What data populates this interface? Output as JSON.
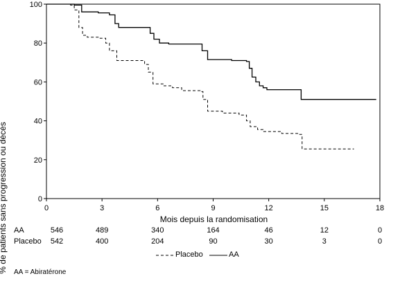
{
  "chart_data": {
    "type": "line",
    "title": "",
    "xlabel": "Mois depuis la randomisation",
    "ylabel": "% de patients sans progression ou décès",
    "xlim": [
      0,
      18
    ],
    "ylim": [
      0,
      100
    ],
    "xticks": [
      0,
      3,
      6,
      9,
      12,
      15,
      18
    ],
    "yticks": [
      0,
      20,
      40,
      60,
      80,
      100
    ],
    "grid": false,
    "series": [
      {
        "name": "AA",
        "style": "solid",
        "color": "#000000",
        "points": [
          [
            0,
            100
          ],
          [
            1.5,
            99.5
          ],
          [
            1.9,
            96
          ],
          [
            2.8,
            95.5
          ],
          [
            3.4,
            94.5
          ],
          [
            3.7,
            90
          ],
          [
            3.9,
            88
          ],
          [
            5.4,
            88
          ],
          [
            5.6,
            85
          ],
          [
            5.8,
            82
          ],
          [
            6.1,
            80
          ],
          [
            6.6,
            79.5
          ],
          [
            8.1,
            79.5
          ],
          [
            8.4,
            76
          ],
          [
            8.7,
            71.5
          ],
          [
            10,
            71
          ],
          [
            10.8,
            70.5
          ],
          [
            10.95,
            67
          ],
          [
            11.1,
            62.5
          ],
          [
            11.3,
            60
          ],
          [
            11.5,
            58
          ],
          [
            11.7,
            57
          ],
          [
            11.9,
            56
          ],
          [
            13.7,
            56
          ],
          [
            13.75,
            51
          ],
          [
            17.8,
            51
          ]
        ]
      },
      {
        "name": "Placebo",
        "style": "dashed",
        "color": "#000000",
        "points": [
          [
            0,
            100
          ],
          [
            1.3,
            99.5
          ],
          [
            1.5,
            97
          ],
          [
            1.75,
            88
          ],
          [
            1.95,
            84
          ],
          [
            2.2,
            83
          ],
          [
            2.8,
            82.5
          ],
          [
            3.2,
            80
          ],
          [
            3.4,
            76
          ],
          [
            3.8,
            71
          ],
          [
            5.3,
            69
          ],
          [
            5.5,
            65
          ],
          [
            5.75,
            59
          ],
          [
            6.3,
            58
          ],
          [
            6.8,
            57
          ],
          [
            7.3,
            55.5
          ],
          [
            8.3,
            55
          ],
          [
            8.45,
            51
          ],
          [
            8.7,
            45
          ],
          [
            9.5,
            44
          ],
          [
            10.4,
            43
          ],
          [
            10.8,
            40
          ],
          [
            11,
            37
          ],
          [
            11.4,
            35.5
          ],
          [
            11.7,
            34.5
          ],
          [
            12.7,
            33.5
          ],
          [
            13.6,
            33
          ],
          [
            13.8,
            25.5
          ],
          [
            16.6,
            25.5
          ]
        ]
      }
    ],
    "risk_table": {
      "times": [
        0,
        3,
        6,
        9,
        12,
        15,
        18
      ],
      "rows": [
        {
          "label": "AA",
          "values": [
            "546",
            "489",
            "340",
            "164",
            "46",
            "12",
            "0"
          ]
        },
        {
          "label": "Placebo",
          "values": [
            "542",
            "400",
            "204",
            "90",
            "30",
            "3",
            "0"
          ]
        }
      ]
    },
    "legend": {
      "position": "bottom",
      "items": [
        "Placebo",
        "AA"
      ]
    },
    "footnote": "AA = Abiratérone"
  }
}
